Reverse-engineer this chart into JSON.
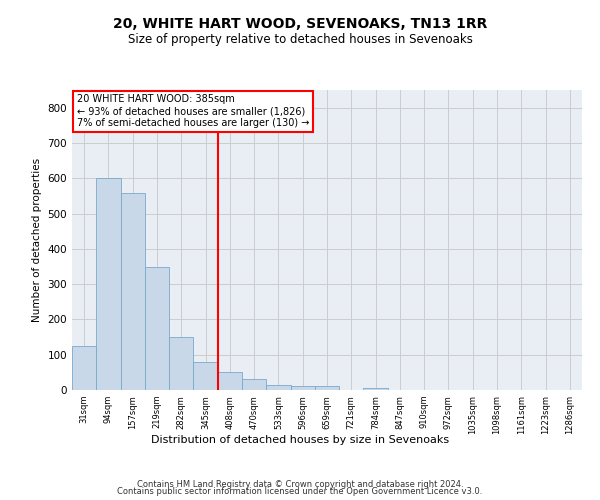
{
  "title": "20, WHITE HART WOOD, SEVENOAKS, TN13 1RR",
  "subtitle": "Size of property relative to detached houses in Sevenoaks",
  "xlabel": "Distribution of detached houses by size in Sevenoaks",
  "ylabel": "Number of detached properties",
  "categories": [
    "31sqm",
    "94sqm",
    "157sqm",
    "219sqm",
    "282sqm",
    "345sqm",
    "408sqm",
    "470sqm",
    "533sqm",
    "596sqm",
    "659sqm",
    "721sqm",
    "784sqm",
    "847sqm",
    "910sqm",
    "972sqm",
    "1035sqm",
    "1098sqm",
    "1161sqm",
    "1223sqm",
    "1286sqm"
  ],
  "values": [
    125,
    600,
    558,
    348,
    150,
    78,
    52,
    30,
    14,
    12,
    10,
    0,
    6,
    0,
    0,
    0,
    0,
    0,
    0,
    0,
    0
  ],
  "bar_color": "#c8d8e8",
  "bar_edge_color": "#7aa8cc",
  "red_line_x": 5.5,
  "annotation_box_text": "20 WHITE HART WOOD: 385sqm\n← 93% of detached houses are smaller (1,826)\n7% of semi-detached houses are larger (130) →",
  "annotation_line_color": "red",
  "grid_color": "#cccccc",
  "background_color": "#e8eef4",
  "footer_line1": "Contains HM Land Registry data © Crown copyright and database right 2024.",
  "footer_line2": "Contains public sector information licensed under the Open Government Licence v3.0.",
  "ylim": [
    0,
    850
  ],
  "yticks": [
    0,
    100,
    200,
    300,
    400,
    500,
    600,
    700,
    800
  ]
}
